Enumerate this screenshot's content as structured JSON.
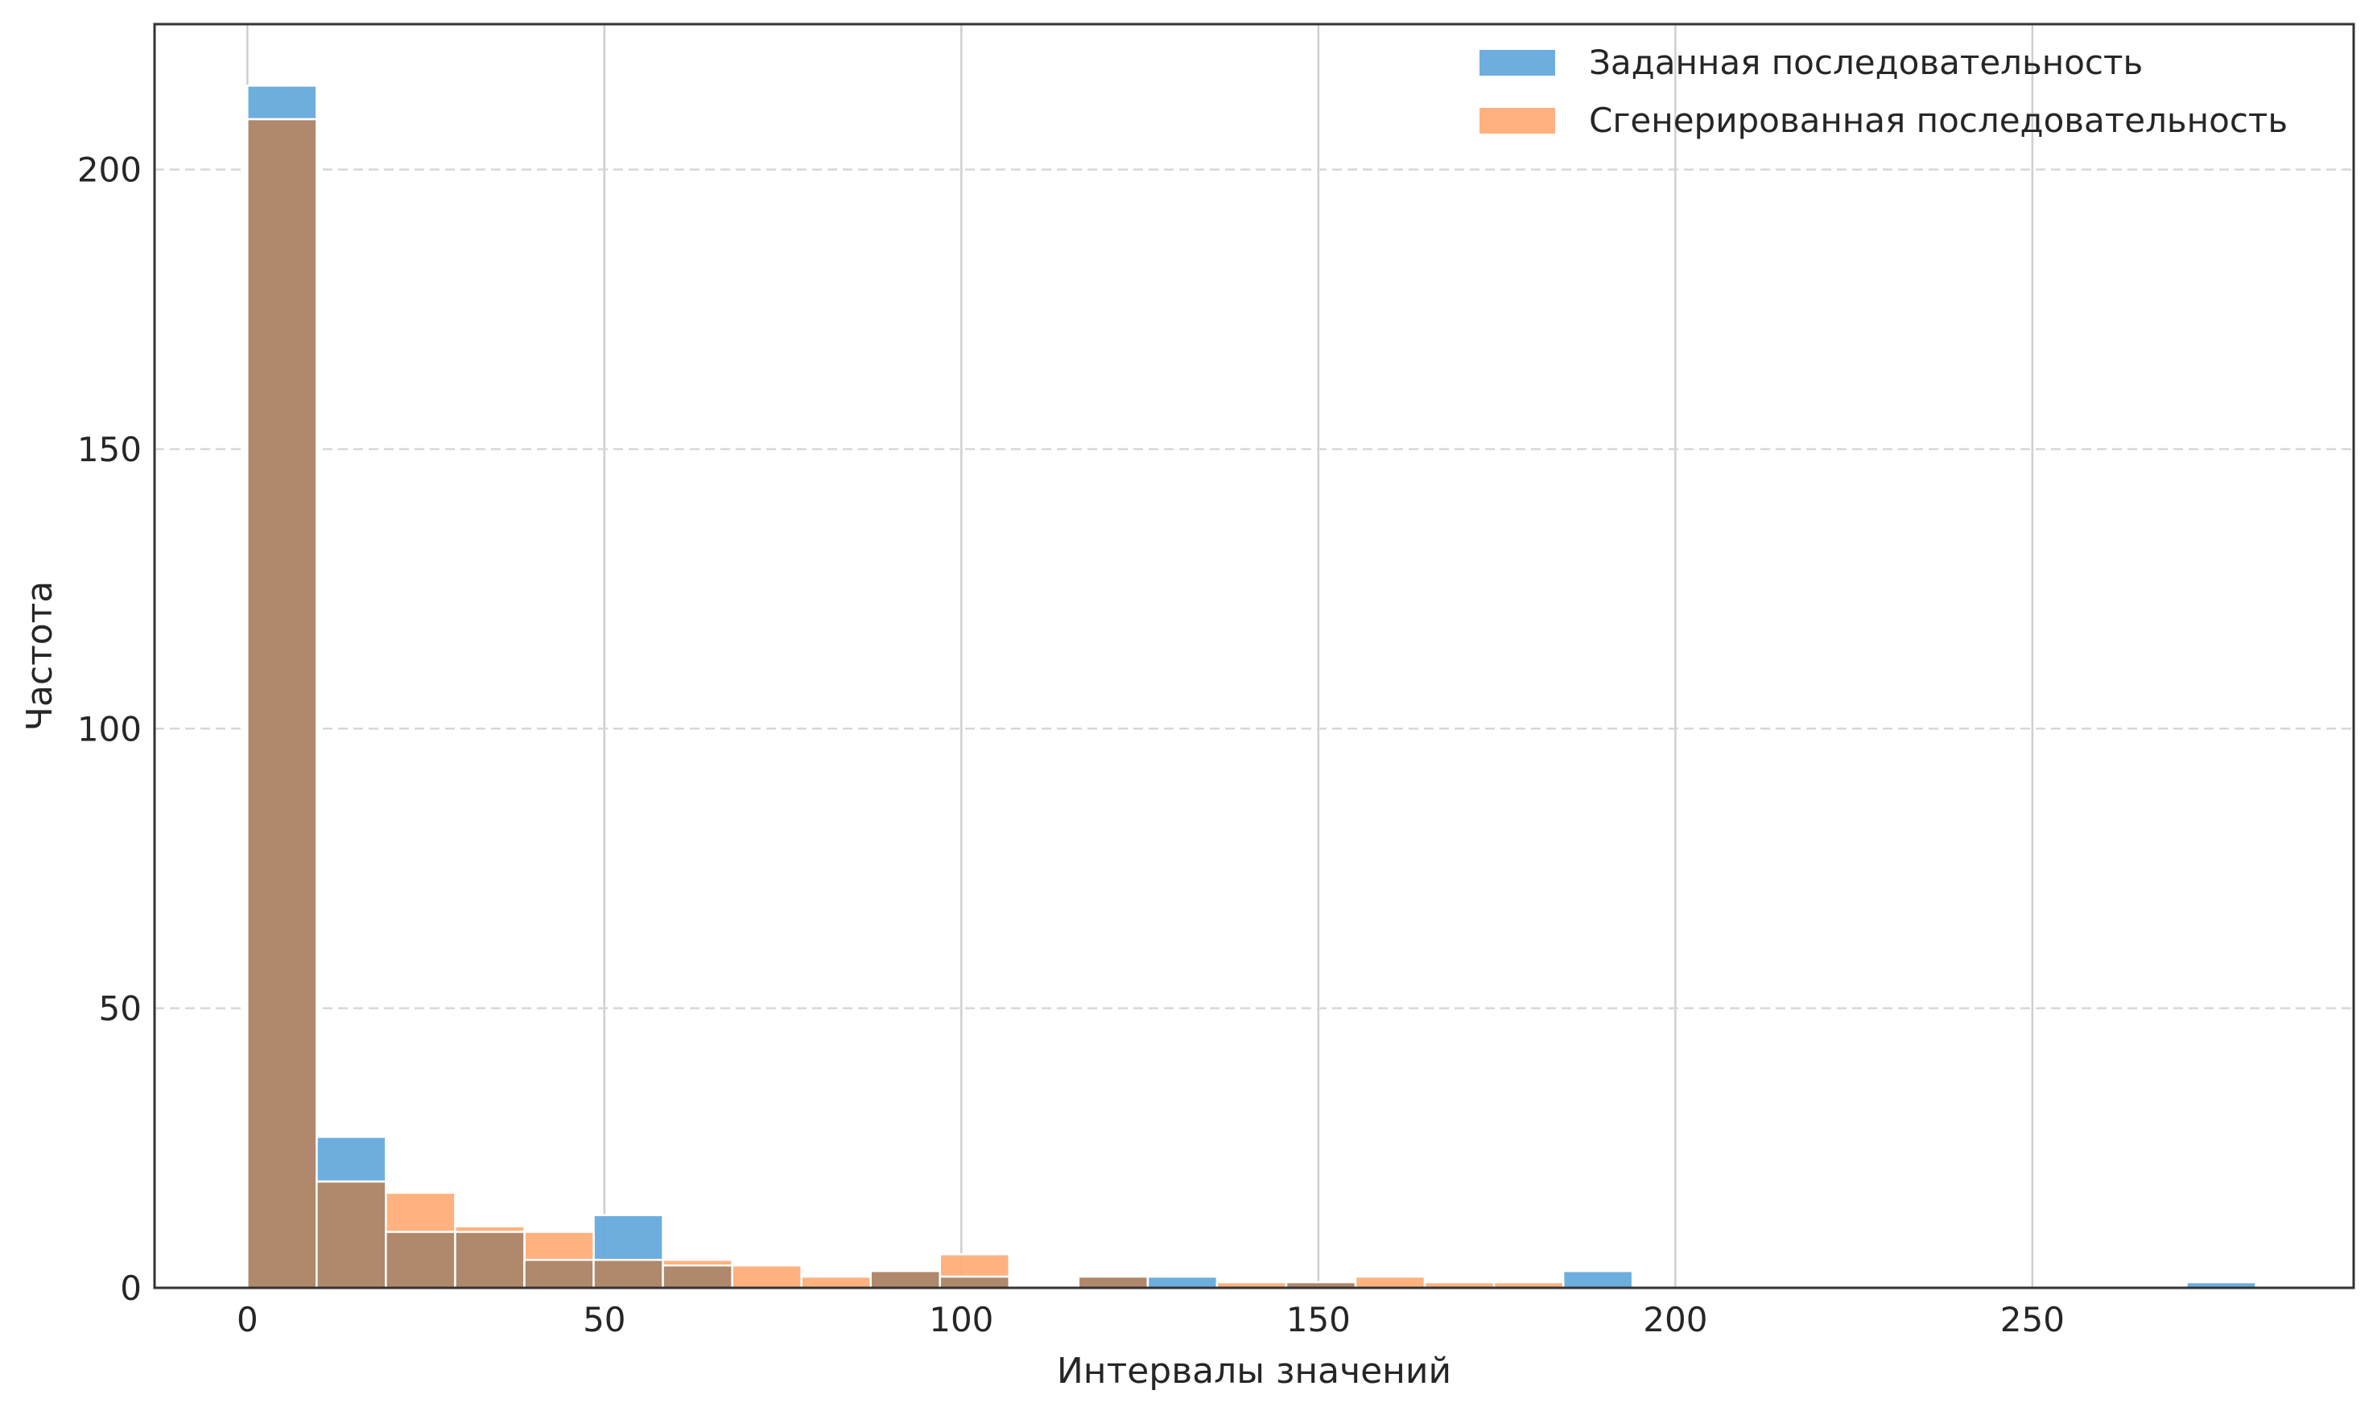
{
  "chart_data": {
    "type": "bar",
    "xlabel": "Интервалы значений",
    "ylabel": "Частота",
    "xlim": [
      -13,
      295
    ],
    "ylim": [
      0,
      226
    ],
    "x_ticks": [
      0,
      50,
      100,
      150,
      200,
      250
    ],
    "y_ticks": [
      0,
      50,
      100,
      150,
      200
    ],
    "x_tick_labels": [
      "0",
      "50",
      "100",
      "150",
      "200",
      "250"
    ],
    "y_tick_labels": [
      "0",
      "50",
      "100",
      "150",
      "200"
    ],
    "grid": {
      "x": "solid",
      "y": "dashed"
    },
    "legend_position": "top-right",
    "series": [
      {
        "name": "Заданная последовательность",
        "color": "#5DA5DA",
        "bins": [
          [
            0,
            9.7,
            215
          ],
          [
            9.7,
            19.4,
            27
          ],
          [
            19.4,
            29.1,
            10
          ],
          [
            29.1,
            38.8,
            10
          ],
          [
            38.8,
            48.5,
            5
          ],
          [
            48.5,
            58.2,
            13
          ],
          [
            58.2,
            67.9,
            4
          ],
          [
            87.3,
            97.0,
            3
          ],
          [
            97.0,
            106.7,
            2
          ],
          [
            116.4,
            126.1,
            2
          ],
          [
            126.1,
            135.8,
            2
          ],
          [
            145.5,
            155.2,
            1
          ],
          [
            184.3,
            194.0,
            3
          ],
          [
            271.6,
            281.3,
            1
          ]
        ]
      },
      {
        "name": "Сгенерированная последовательность",
        "color": "#FFAA71",
        "bins": [
          [
            0,
            9.7,
            209
          ],
          [
            9.7,
            19.4,
            19
          ],
          [
            19.4,
            29.1,
            17
          ],
          [
            29.1,
            38.8,
            11
          ],
          [
            38.8,
            48.5,
            10
          ],
          [
            48.5,
            58.2,
            5
          ],
          [
            58.2,
            67.9,
            5
          ],
          [
            67.9,
            77.6,
            4
          ],
          [
            77.6,
            87.3,
            2
          ],
          [
            87.3,
            97.0,
            3
          ],
          [
            97.0,
            106.7,
            6
          ],
          [
            116.4,
            126.1,
            2
          ],
          [
            135.8,
            145.5,
            1
          ],
          [
            145.5,
            155.2,
            1
          ],
          [
            155.2,
            164.9,
            2
          ],
          [
            164.9,
            174.6,
            1
          ],
          [
            174.6,
            184.3,
            1
          ]
        ]
      }
    ]
  }
}
